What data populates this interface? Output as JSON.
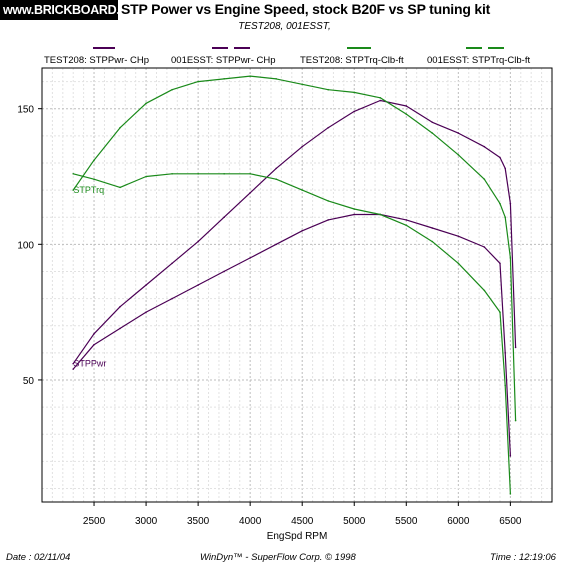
{
  "header": {
    "logo_text": "www.BRICKBOARD.com",
    "title": "STP  Power vs Engine Speed, stock B20F vs SP tuning kit",
    "subtitle": "TEST208, 001ESST,"
  },
  "legend": [
    {
      "label": "TEST208: STPPwr- CHp",
      "color": "#4b0055"
    },
    {
      "label": "001ESST: STPPwr- CHp",
      "color": "#4b0055"
    },
    {
      "label": "TEST208: STPTrq-Clb-ft",
      "color": "#1a8a1a"
    },
    {
      "label": "001ESST: STPTrq-Clb-ft",
      "color": "#1a8a1a"
    }
  ],
  "footer": {
    "date": "Date : 02/11/04",
    "software": "WinDyn™ - SuperFlow Corp. © 1998",
    "time": "Time : 12:19:06"
  },
  "chart_data": {
    "type": "line",
    "title": "STP  Power vs Engine Speed, stock B20F vs SP tuning kit",
    "xlabel": "EngSpd  RPM",
    "ylabel": "",
    "xlim": [
      2000,
      6900
    ],
    "ylim": [
      5,
      165
    ],
    "xticks": [
      2500,
      3000,
      3500,
      4000,
      4500,
      5000,
      5500,
      6000,
      6500
    ],
    "yticks": [
      50,
      100,
      150
    ],
    "grid": true,
    "annotations": [
      {
        "text": "STPTrq",
        "x": 2350,
        "y": 120
      },
      {
        "text": "STPPwr",
        "x": 2350,
        "y": 56
      }
    ],
    "series": [
      {
        "name": "TEST208: STPPwr- CHp",
        "color": "#4b0055",
        "x": [
          2300,
          2500,
          2750,
          3000,
          3250,
          3500,
          3750,
          4000,
          4250,
          4500,
          4750,
          5000,
          5250,
          5500,
          5750,
          6000,
          6250,
          6400,
          6450,
          6500,
          6550
        ],
        "y": [
          56,
          67,
          77,
          85,
          93,
          101,
          110,
          119,
          128,
          136,
          143,
          149,
          153,
          151,
          145,
          141,
          136,
          132,
          128,
          115,
          62
        ]
      },
      {
        "name": "001ESST: STPPwr- CHp",
        "color": "#4b0055",
        "x": [
          2300,
          2500,
          2750,
          3000,
          3250,
          3500,
          3750,
          4000,
          4250,
          4500,
          4750,
          5000,
          5250,
          5500,
          5750,
          6000,
          6250,
          6400,
          6450,
          6500
        ],
        "y": [
          54,
          63,
          69,
          75,
          80,
          85,
          90,
          95,
          100,
          105,
          109,
          111,
          111,
          109,
          106,
          103,
          99,
          93,
          60,
          22
        ]
      },
      {
        "name": "TEST208: STPTrq-Clb-ft",
        "color": "#1a8a1a",
        "x": [
          2300,
          2500,
          2750,
          3000,
          3250,
          3500,
          3750,
          4000,
          4250,
          4500,
          4750,
          5000,
          5250,
          5500,
          5750,
          6000,
          6250,
          6400,
          6450,
          6500,
          6550
        ],
        "y": [
          120,
          131,
          143,
          152,
          157,
          160,
          161,
          162,
          161,
          159,
          157,
          156,
          154,
          148,
          141,
          133,
          124,
          115,
          110,
          95,
          35
        ]
      },
      {
        "name": "001ESST: STPTrq-Clb-ft",
        "color": "#1a8a1a",
        "x": [
          2300,
          2500,
          2750,
          3000,
          3250,
          3500,
          3750,
          4000,
          4250,
          4500,
          4750,
          5000,
          5250,
          5500,
          5750,
          6000,
          6250,
          6400,
          6450,
          6500
        ],
        "y": [
          126,
          124,
          121,
          125,
          126,
          126,
          126,
          126,
          124,
          120,
          116,
          113,
          111,
          107,
          101,
          93,
          83,
          75,
          48,
          8
        ]
      }
    ]
  }
}
